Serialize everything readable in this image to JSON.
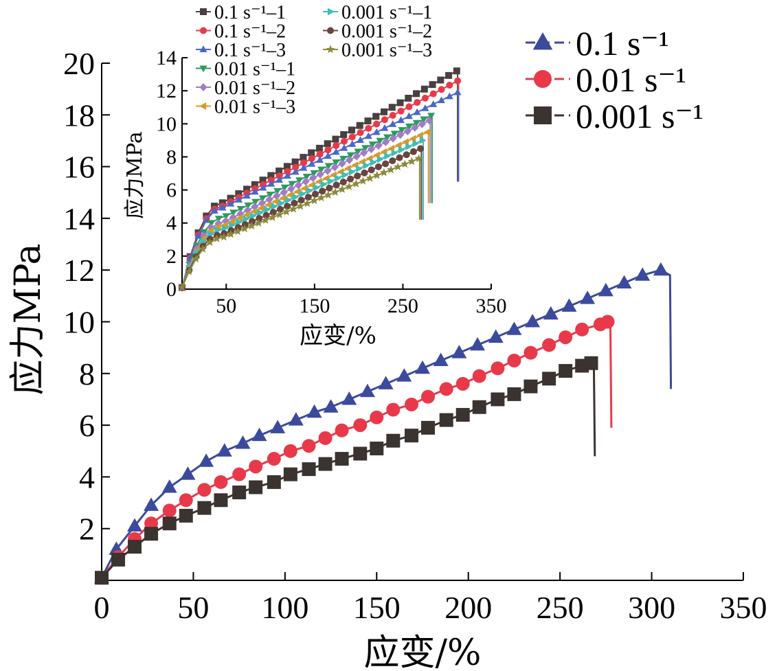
{
  "colors": {
    "s0_1": "#3b4a9c",
    "s0_01": "#e8394a",
    "s0_001": "#3a3330",
    "in_0_1_1": "#4a4040",
    "in_0_1_2": "#e8394a",
    "in_0_1_3": "#4a66c8",
    "in_0_01_1": "#2e9a5a",
    "in_0_01_2": "#a07cc8",
    "in_0_01_3": "#d49a2c",
    "in_0_001_1": "#3dbdb8",
    "in_0_001_2": "#6a4440",
    "in_0_001_3": "#8a8a3a"
  },
  "chart_data": [
    {
      "type": "line",
      "xlabel": "应变/%",
      "ylabel": "应力MPa",
      "xlim": [
        0,
        350
      ],
      "ylim": [
        0,
        20
      ],
      "x_ticks": [
        "0",
        "50",
        "100",
        "150",
        "200",
        "250",
        "300",
        "350"
      ],
      "y_ticks": [
        "2",
        "4",
        "6",
        "8",
        "10",
        "12",
        "14",
        "16",
        "18",
        "20"
      ],
      "legend": {
        "position": "top-right"
      },
      "series": [
        {
          "name": "0.1 s⁻¹",
          "marker": "triangle",
          "color_key": "s0_1",
          "x": [
            0,
            8,
            18,
            27,
            37,
            47,
            57,
            67,
            77,
            86,
            96,
            106,
            116,
            125,
            135,
            145,
            155,
            165,
            175,
            185,
            195,
            205,
            215,
            225,
            235,
            245,
            255,
            265,
            275,
            285,
            295,
            305,
            310,
            310.5
          ],
          "y": [
            0.1,
            1.2,
            2.1,
            2.9,
            3.6,
            4.1,
            4.6,
            5.0,
            5.3,
            5.6,
            5.9,
            6.2,
            6.5,
            6.7,
            7.0,
            7.3,
            7.6,
            7.9,
            8.2,
            8.5,
            8.8,
            9.1,
            9.4,
            9.7,
            10.0,
            10.3,
            10.6,
            10.9,
            11.2,
            11.5,
            11.8,
            12.0,
            11.8,
            7.4
          ]
        },
        {
          "name": "0.01 s⁻¹",
          "marker": "circle",
          "color_key": "s0_01",
          "x": [
            0,
            9,
            18,
            27,
            37,
            46,
            56,
            65,
            75,
            84,
            94,
            103,
            113,
            122,
            131,
            141,
            150,
            159,
            169,
            178,
            188,
            197,
            206,
            216,
            225,
            234,
            244,
            253,
            262,
            272,
            276,
            277.5,
            278
          ],
          "y": [
            0.1,
            0.9,
            1.6,
            2.2,
            2.7,
            3.1,
            3.5,
            3.8,
            4.1,
            4.4,
            4.7,
            5.0,
            5.2,
            5.5,
            5.8,
            6.0,
            6.3,
            6.6,
            6.8,
            7.1,
            7.4,
            7.6,
            7.9,
            8.2,
            8.5,
            8.8,
            9.1,
            9.4,
            9.7,
            9.9,
            10.0,
            9.8,
            5.9
          ]
        },
        {
          "name": "0.001 s⁻¹",
          "marker": "square",
          "color_key": "s0_001",
          "x": [
            0,
            9,
            18,
            27,
            37,
            46,
            56,
            65,
            75,
            84,
            94,
            103,
            113,
            122,
            131,
            141,
            150,
            159,
            169,
            178,
            188,
            197,
            206,
            216,
            225,
            234,
            244,
            253,
            262,
            267,
            268.5,
            269
          ],
          "y": [
            0.1,
            0.8,
            1.3,
            1.8,
            2.2,
            2.5,
            2.8,
            3.1,
            3.4,
            3.6,
            3.8,
            4.1,
            4.3,
            4.5,
            4.7,
            4.9,
            5.1,
            5.4,
            5.6,
            5.9,
            6.2,
            6.4,
            6.7,
            7.0,
            7.2,
            7.5,
            7.8,
            8.1,
            8.3,
            8.4,
            8.2,
            4.8
          ]
        }
      ]
    },
    {
      "type": "line",
      "xlabel": "应变/%",
      "ylabel": "应力MPa",
      "xlim": [
        0,
        350
      ],
      "ylim": [
        0,
        14
      ],
      "x_ticks": [
        "50",
        "150",
        "250",
        "350"
      ],
      "x_tick_values": [
        50,
        150,
        250,
        350
      ],
      "y_ticks": [
        "0",
        "2",
        "4",
        "6",
        "8",
        "10",
        "12",
        "14"
      ],
      "legend": {
        "position": "top-left"
      },
      "series": [
        {
          "name": "0.1 s⁻¹–1",
          "marker": "square",
          "color_key": "in_0_1_1",
          "end_x": 311,
          "end_y": 13.2,
          "drop_y": 6.5,
          "knee_y": 5.2,
          "start_y": 0.1
        },
        {
          "name": "0.1 s⁻¹–2",
          "marker": "circle",
          "color_key": "in_0_1_2",
          "end_x": 312,
          "end_y": 12.6,
          "drop_y": 6.5,
          "knee_y": 5.0,
          "start_y": 0.1
        },
        {
          "name": "0.1 s⁻¹–3",
          "marker": "triangle",
          "color_key": "in_0_1_3",
          "end_x": 312,
          "end_y": 11.9,
          "drop_y": 6.5,
          "knee_y": 4.9,
          "start_y": 0.1
        },
        {
          "name": "0.01 s⁻¹–1",
          "marker": "triangle-down",
          "color_key": "in_0_01_1",
          "end_x": 282,
          "end_y": 10.5,
          "drop_y": 5.2,
          "knee_y": 4.3,
          "start_y": 0.1
        },
        {
          "name": "0.01 s⁻¹–2",
          "marker": "diamond",
          "color_key": "in_0_01_2",
          "end_x": 280,
          "end_y": 10.2,
          "drop_y": 5.2,
          "knee_y": 4.0,
          "start_y": 0.1
        },
        {
          "name": "0.01 s⁻¹–3",
          "marker": "triangle-left",
          "color_key": "in_0_01_3",
          "end_x": 278,
          "end_y": 9.5,
          "drop_y": 5.2,
          "knee_y": 3.8,
          "start_y": 0.1
        },
        {
          "name": "0.001 s⁻¹–1",
          "marker": "triangle-right",
          "color_key": "in_0_001_1",
          "end_x": 272,
          "end_y": 9.0,
          "drop_y": 4.2,
          "knee_y": 3.6,
          "start_y": 0.1
        },
        {
          "name": "0.001 s⁻¹–2",
          "marker": "hexagon",
          "color_key": "in_0_001_2",
          "end_x": 270,
          "end_y": 8.5,
          "drop_y": 4.2,
          "knee_y": 3.3,
          "start_y": 0.1
        },
        {
          "name": "0.001 s⁻¹–3",
          "marker": "star",
          "color_key": "in_0_001_3",
          "end_x": 268,
          "end_y": 7.9,
          "drop_y": 4.2,
          "knee_y": 3.1,
          "start_y": 0.1
        }
      ]
    }
  ]
}
